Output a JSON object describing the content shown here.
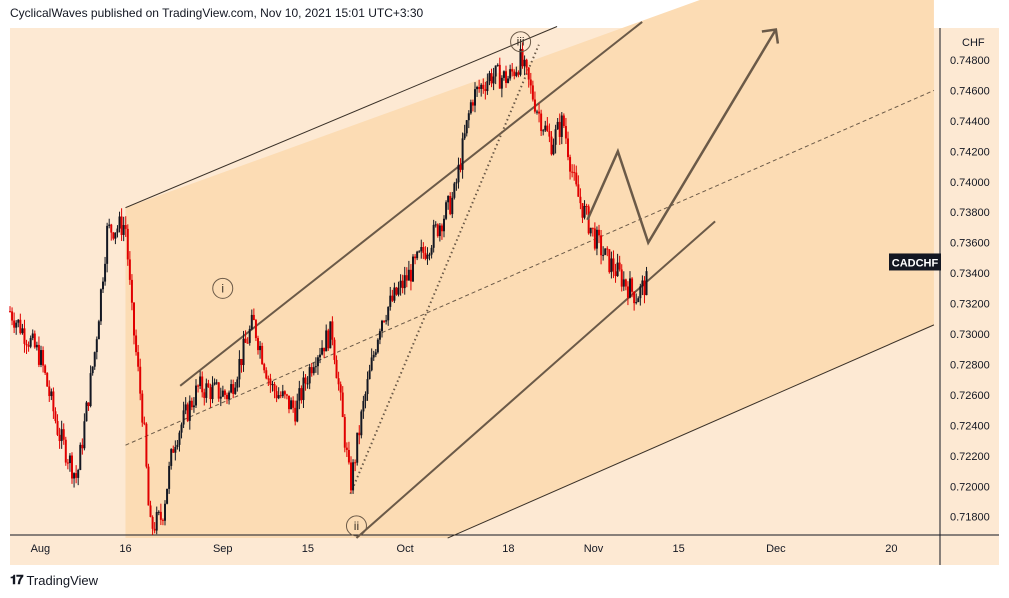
{
  "header": {
    "attribution": "CyclicalWaves published on TradingView.com, Nov 10, 2021 15:01 UTC+3:30"
  },
  "footer": {
    "brand": "TradingView",
    "logo_icon": "tradingview-logo-icon"
  },
  "colors": {
    "bg_dark": "#fcdcb4",
    "bg_light": "#fde9d3",
    "candle": "#131722",
    "candle_red": "#e00000",
    "line": "#6b5a48",
    "badge_bg": "#131722",
    "badge_text": "#ffffff"
  },
  "chart_data": {
    "type": "candlestick",
    "symbol_badge": "CADCHF",
    "currency_label": "CHF",
    "x_ticks": [
      "Aug",
      "16",
      "Sep",
      "15",
      "Oct",
      "18",
      "Nov",
      "15",
      "Dec",
      "20"
    ],
    "y_ticks": [
      "0.74800",
      "0.74600",
      "0.74400",
      "0.74200",
      "0.74000",
      "0.73800",
      "0.73600",
      "0.73400",
      "0.73200",
      "0.73000",
      "0.72800",
      "0.72600",
      "0.72400",
      "0.72200",
      "0.72000",
      "0.71800"
    ],
    "y_range": [
      0.7168,
      0.7501
    ],
    "x_range": [
      "2021-07-28",
      "2021-12-28"
    ],
    "wave_labels": [
      "iii",
      "i",
      "ii"
    ],
    "price_path": [
      {
        "date": "2021-07-28",
        "close": 0.7315
      },
      {
        "date": "2021-08-02",
        "close": 0.7285
      },
      {
        "date": "2021-08-05",
        "close": 0.7235
      },
      {
        "date": "2021-08-08",
        "close": 0.7205
      },
      {
        "date": "2021-08-11",
        "close": 0.729
      },
      {
        "date": "2021-08-13",
        "close": 0.7368
      },
      {
        "date": "2021-08-16",
        "close": 0.7372
      },
      {
        "date": "2021-08-17",
        "close": 0.7315
      },
      {
        "date": "2021-08-19",
        "close": 0.724
      },
      {
        "date": "2021-08-20",
        "close": 0.7172
      },
      {
        "date": "2021-08-22",
        "close": 0.718
      },
      {
        "date": "2021-08-24",
        "close": 0.723
      },
      {
        "date": "2021-08-28",
        "close": 0.7265
      },
      {
        "date": "2021-09-02",
        "close": 0.726
      },
      {
        "date": "2021-09-06",
        "close": 0.7308
      },
      {
        "date": "2021-09-09",
        "close": 0.7265
      },
      {
        "date": "2021-09-13",
        "close": 0.725
      },
      {
        "date": "2021-09-16",
        "close": 0.7285
      },
      {
        "date": "2021-09-19",
        "close": 0.7302
      },
      {
        "date": "2021-09-22",
        "close": 0.72
      },
      {
        "date": "2021-09-24",
        "close": 0.725
      },
      {
        "date": "2021-09-27",
        "close": 0.731
      },
      {
        "date": "2021-10-01",
        "close": 0.7335
      },
      {
        "date": "2021-10-05",
        "close": 0.736
      },
      {
        "date": "2021-10-09",
        "close": 0.739
      },
      {
        "date": "2021-10-12",
        "close": 0.7455
      },
      {
        "date": "2021-10-15",
        "close": 0.747
      },
      {
        "date": "2021-10-18",
        "close": 0.7468
      },
      {
        "date": "2021-10-20",
        "close": 0.748
      },
      {
        "date": "2021-10-23",
        "close": 0.7445
      },
      {
        "date": "2021-10-25",
        "close": 0.7425
      },
      {
        "date": "2021-10-27",
        "close": 0.744
      },
      {
        "date": "2021-10-29",
        "close": 0.7395
      },
      {
        "date": "2021-11-01",
        "close": 0.7365
      },
      {
        "date": "2021-11-03",
        "close": 0.735
      },
      {
        "date": "2021-11-05",
        "close": 0.734
      },
      {
        "date": "2021-11-08",
        "close": 0.7325
      },
      {
        "date": "2021-11-10",
        "close": 0.7335
      }
    ],
    "projection_path": [
      {
        "date": "2021-10-31",
        "price": 0.7375
      },
      {
        "date": "2021-11-05",
        "price": 0.742
      },
      {
        "date": "2021-11-10",
        "price": 0.736
      },
      {
        "date": "2021-12-01",
        "price": 0.75
      }
    ],
    "trendlines": [
      {
        "name": "channel-upper",
        "style": "solid",
        "points": [
          {
            "date": "2021-08-16",
            "price": 0.7383
          },
          {
            "date": "2021-10-26",
            "price": 0.7502
          }
        ]
      },
      {
        "name": "inner-upper",
        "style": "solid",
        "points": [
          {
            "date": "2021-08-25",
            "price": 0.7266
          },
          {
            "date": "2021-11-09",
            "price": 0.7505
          }
        ]
      },
      {
        "name": "inner-lower",
        "style": "solid",
        "points": [
          {
            "date": "2021-09-23",
            "price": 0.7166
          },
          {
            "date": "2021-11-21",
            "price": 0.7374
          }
        ]
      },
      {
        "name": "channel-lower",
        "style": "solid",
        "points": [
          {
            "date": "2021-10-08",
            "price": 0.7166
          },
          {
            "date": "2021-12-27",
            "price": 0.7306
          }
        ]
      },
      {
        "name": "midline",
        "style": "dashed",
        "points": [
          {
            "date": "2021-08-16",
            "price": 0.7227
          },
          {
            "date": "2021-12-27",
            "price": 0.746
          }
        ]
      },
      {
        "name": "wave-iii-guide",
        "style": "dotted",
        "points": [
          {
            "date": "2021-09-22",
            "price": 0.7195
          },
          {
            "date": "2021-10-23",
            "price": 0.749
          }
        ]
      }
    ],
    "grid": false,
    "legend": "none"
  }
}
